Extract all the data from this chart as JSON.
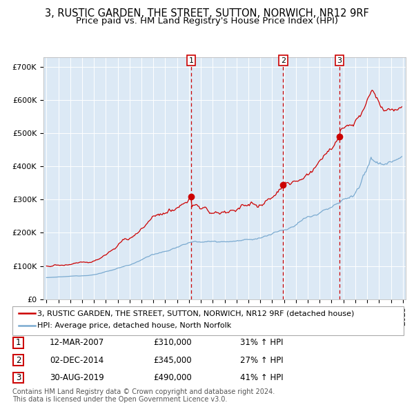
{
  "title": "3, RUSTIC GARDEN, THE STREET, SUTTON, NORWICH, NR12 9RF",
  "subtitle": "Price paid vs. HM Land Registry's House Price Index (HPI)",
  "legend_line1": "3, RUSTIC GARDEN, THE STREET, SUTTON, NORWICH, NR12 9RF (detached house)",
  "legend_line2": "HPI: Average price, detached house, North Norfolk",
  "ylim": [
    0,
    730000
  ],
  "yticks": [
    0,
    100000,
    200000,
    300000,
    400000,
    500000,
    600000,
    700000
  ],
  "ytick_labels": [
    "£0",
    "£100K",
    "£200K",
    "£300K",
    "£400K",
    "£500K",
    "£600K",
    "£700K"
  ],
  "background_color": "#ffffff",
  "plot_bg_color": "#dce9f5",
  "grid_color": "#ffffff",
  "red_line_color": "#cc0000",
  "blue_line_color": "#7aaad0",
  "vline_color": "#cc0000",
  "sale_dates": [
    "2007-03-12",
    "2014-12-02",
    "2019-08-30"
  ],
  "sale_prices": [
    310000,
    345000,
    490000
  ],
  "sale_labels": [
    "1",
    "2",
    "3"
  ],
  "sale_info": [
    {
      "num": "1",
      "date": "12-MAR-2007",
      "price": "£310,000",
      "hpi": "31% ↑ HPI"
    },
    {
      "num": "2",
      "date": "02-DEC-2014",
      "price": "£345,000",
      "hpi": "27% ↑ HPI"
    },
    {
      "num": "3",
      "date": "30-AUG-2019",
      "price": "£490,000",
      "hpi": "41% ↑ HPI"
    }
  ],
  "footer1": "Contains HM Land Registry data © Crown copyright and database right 2024.",
  "footer2": "This data is licensed under the Open Government Licence v3.0.",
  "title_fontsize": 10.5,
  "subtitle_fontsize": 9.5,
  "tick_fontsize": 8,
  "legend_fontsize": 8,
  "table_fontsize": 8.5,
  "footer_fontsize": 7
}
